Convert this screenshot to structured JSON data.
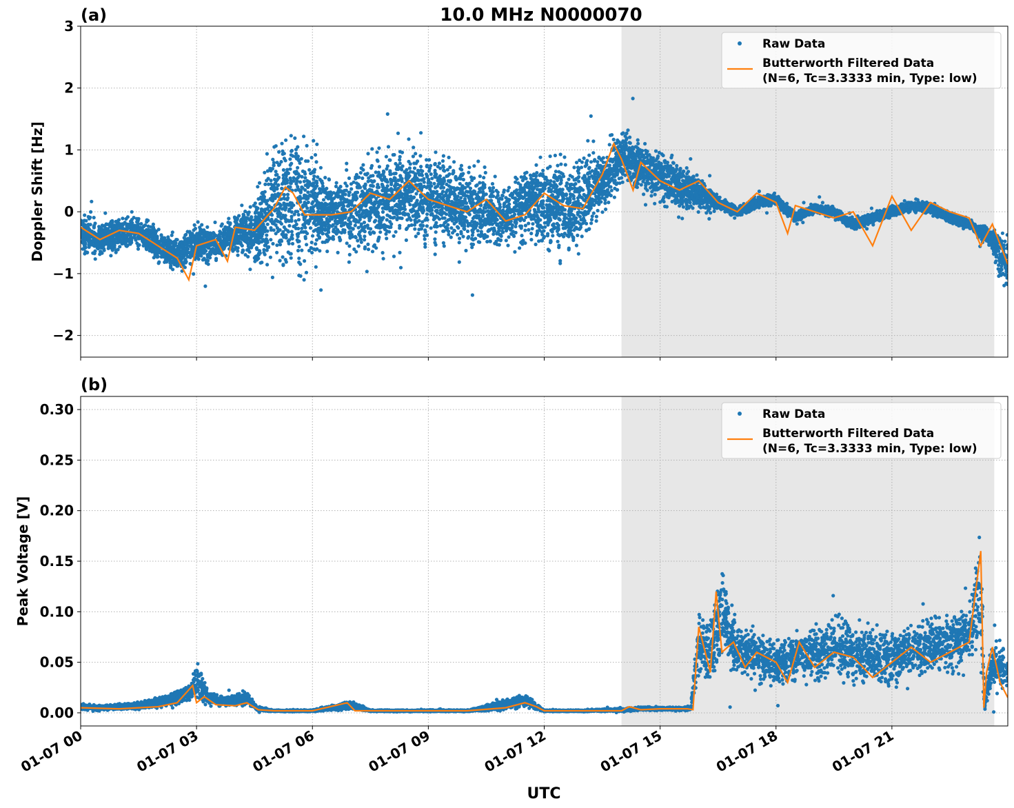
{
  "figure_title": "10.0 MHz N0000070",
  "x_axis": {
    "label": "UTC",
    "tick_labels": [
      "01-07 00",
      "01-07 03",
      "01-07 06",
      "01-07 09",
      "01-07 12",
      "01-07 15",
      "01-07 18",
      "01-07 21"
    ]
  },
  "legend": {
    "raw": "Raw Data",
    "filtered_line1": "Butterworth Filtered Data",
    "filtered_line2": "(N=6, Tc=3.3333 min, Type: low)"
  },
  "colors": {
    "raw": "#1f77b4",
    "filtered": "#ff7f0e",
    "shade": "#e7e7e7",
    "grid": "#b0b0b0"
  },
  "chart_data": [
    {
      "panel": "(a)",
      "type": "scatter",
      "xlabel": "",
      "ylabel": "Doppler Shift [Hz]",
      "x_unit": "hours UTC on 01-07",
      "xlim": [
        0,
        24
      ],
      "ylim": [
        -2.35,
        3.0
      ],
      "yticks": [
        -2,
        -1,
        0,
        1,
        2,
        3
      ],
      "ytick_labels": [
        "−2",
        "−1",
        "0",
        "1",
        "2",
        "3"
      ],
      "shaded_region": [
        14.0,
        23.65
      ],
      "grid": true,
      "legend_position": "upper right",
      "series": [
        {
          "name": "Raw Data",
          "kind": "scatter",
          "x": [
            0.0,
            0.5,
            1.0,
            1.5,
            2.0,
            2.5,
            3.0,
            3.5,
            4.0,
            4.5,
            5.0,
            5.5,
            6.0,
            6.5,
            7.0,
            7.5,
            8.0,
            8.5,
            9.0,
            9.5,
            10.0,
            10.5,
            11.0,
            11.5,
            12.0,
            12.5,
            13.0,
            13.5,
            14.0,
            14.5,
            15.0,
            15.5,
            16.0,
            16.5,
            17.0,
            17.5,
            18.0,
            18.5,
            19.0,
            19.5,
            20.0,
            20.5,
            21.0,
            21.5,
            22.0,
            22.5,
            23.0,
            23.5,
            24.0
          ],
          "center": [
            -0.35,
            -0.45,
            -0.35,
            -0.3,
            -0.55,
            -0.7,
            -0.5,
            -0.55,
            -0.35,
            -0.3,
            0.1,
            0.25,
            0.1,
            0.0,
            0.0,
            0.15,
            0.2,
            0.3,
            0.2,
            0.15,
            0.1,
            0.05,
            -0.1,
            0.15,
            0.15,
            0.05,
            0.2,
            0.5,
            0.9,
            0.75,
            0.6,
            0.4,
            0.3,
            0.15,
            0.0,
            0.15,
            0.2,
            -0.1,
            0.05,
            0.0,
            -0.2,
            -0.1,
            0.0,
            0.1,
            0.05,
            -0.1,
            -0.2,
            -0.4,
            -0.9
          ],
          "spread": [
            0.35,
            0.35,
            0.3,
            0.3,
            0.3,
            0.3,
            0.3,
            0.3,
            0.35,
            0.55,
            1.1,
            1.2,
            1.1,
            0.5,
            0.8,
            0.85,
            0.85,
            0.85,
            0.85,
            0.8,
            0.7,
            0.6,
            0.5,
            0.65,
            0.8,
            0.8,
            0.75,
            0.55,
            0.55,
            0.45,
            0.45,
            0.45,
            0.3,
            0.12,
            0.1,
            0.1,
            0.1,
            0.1,
            0.1,
            0.1,
            0.1,
            0.1,
            0.1,
            0.1,
            0.1,
            0.1,
            0.1,
            0.15,
            0.6
          ]
        },
        {
          "name": "Butterworth Filtered Data\n(N=6, Tc=3.3333 min, Type: low)",
          "kind": "line",
          "x": [
            0.0,
            0.5,
            1.0,
            1.5,
            2.0,
            2.5,
            2.8,
            3.0,
            3.5,
            3.8,
            4.0,
            4.5,
            5.0,
            5.3,
            5.5,
            5.8,
            6.0,
            6.5,
            7.0,
            7.5,
            8.0,
            8.5,
            9.0,
            9.5,
            10.0,
            10.5,
            11.0,
            11.5,
            12.0,
            12.5,
            13.0,
            13.5,
            13.8,
            14.0,
            14.3,
            14.5,
            15.0,
            15.5,
            16.0,
            16.5,
            17.0,
            17.5,
            18.0,
            18.3,
            18.5,
            19.0,
            19.5,
            20.0,
            20.5,
            21.0,
            21.5,
            22.0,
            22.5,
            23.0,
            23.3,
            23.6,
            24.0
          ],
          "y": [
            -0.25,
            -0.45,
            -0.3,
            -0.35,
            -0.55,
            -0.75,
            -1.1,
            -0.55,
            -0.45,
            -0.8,
            -0.25,
            -0.3,
            0.05,
            0.4,
            0.3,
            -0.05,
            -0.05,
            -0.05,
            0.0,
            0.3,
            0.2,
            0.5,
            0.2,
            0.1,
            0.0,
            0.2,
            -0.15,
            -0.05,
            0.3,
            0.1,
            0.05,
            0.6,
            1.1,
            0.85,
            0.35,
            0.8,
            0.5,
            0.35,
            0.5,
            0.15,
            0.0,
            0.3,
            0.15,
            -0.35,
            0.1,
            0.0,
            -0.1,
            0.0,
            -0.55,
            0.25,
            -0.3,
            0.15,
            0.0,
            -0.1,
            -0.55,
            -0.2,
            -0.85
          ]
        }
      ]
    },
    {
      "panel": "(b)",
      "type": "scatter",
      "xlabel": "UTC",
      "ylabel": "Peak Voltage [V]",
      "x_unit": "hours UTC on 01-07",
      "xlim": [
        0,
        24
      ],
      "ylim": [
        -0.013,
        0.313
      ],
      "yticks": [
        0.0,
        0.05,
        0.1,
        0.15,
        0.2,
        0.25,
        0.3
      ],
      "ytick_labels": [
        "0.00",
        "0.05",
        "0.10",
        "0.15",
        "0.20",
        "0.25",
        "0.30"
      ],
      "shaded_region": [
        14.0,
        23.65
      ],
      "grid": true,
      "legend_position": "upper right",
      "series": [
        {
          "name": "Raw Data",
          "kind": "scatter",
          "x": [
            0.0,
            0.5,
            1.0,
            1.5,
            2.0,
            2.5,
            2.8,
            3.0,
            3.3,
            3.6,
            4.0,
            4.3,
            4.6,
            5.0,
            6.0,
            7.0,
            7.5,
            8.0,
            9.0,
            10.0,
            11.0,
            11.5,
            12.0,
            13.0,
            14.0,
            14.5,
            15.0,
            15.5,
            15.8,
            16.0,
            16.3,
            16.6,
            17.0,
            17.5,
            18.0,
            18.5,
            19.0,
            19.5,
            20.0,
            20.5,
            21.0,
            21.5,
            22.0,
            22.5,
            23.0,
            23.3,
            23.4,
            23.6,
            24.0
          ],
          "center": [
            0.006,
            0.005,
            0.006,
            0.007,
            0.01,
            0.015,
            0.02,
            0.03,
            0.015,
            0.012,
            0.012,
            0.015,
            0.004,
            0.002,
            0.002,
            0.008,
            0.002,
            0.002,
            0.002,
            0.002,
            0.008,
            0.012,
            0.002,
            0.002,
            0.003,
            0.004,
            0.004,
            0.004,
            0.005,
            0.07,
            0.06,
            0.1,
            0.06,
            0.055,
            0.05,
            0.055,
            0.06,
            0.065,
            0.06,
            0.055,
            0.055,
            0.06,
            0.065,
            0.07,
            0.075,
            0.12,
            0.01,
            0.05,
            0.04
          ],
          "spread": [
            0.003,
            0.003,
            0.003,
            0.004,
            0.006,
            0.008,
            0.01,
            0.02,
            0.008,
            0.006,
            0.006,
            0.007,
            0.002,
            0.001,
            0.001,
            0.005,
            0.001,
            0.001,
            0.001,
            0.001,
            0.006,
            0.007,
            0.001,
            0.001,
            0.002,
            0.002,
            0.002,
            0.002,
            0.003,
            0.04,
            0.04,
            0.05,
            0.03,
            0.03,
            0.025,
            0.025,
            0.03,
            0.03,
            0.03,
            0.03,
            0.03,
            0.03,
            0.03,
            0.03,
            0.03,
            0.08,
            0.01,
            0.03,
            0.02
          ]
        },
        {
          "name": "Butterworth Filtered Data\n(N=6, Tc=3.3333 min, Type: low)",
          "kind": "line",
          "x": [
            0.0,
            1.0,
            2.0,
            2.5,
            2.9,
            3.0,
            3.2,
            3.5,
            4.0,
            4.3,
            4.6,
            5.0,
            6.0,
            6.9,
            7.1,
            7.5,
            9.0,
            10.0,
            11.0,
            11.5,
            11.8,
            12.0,
            13.0,
            14.0,
            14.2,
            14.5,
            15.0,
            15.7,
            15.85,
            16.0,
            16.3,
            16.45,
            16.6,
            16.9,
            17.2,
            17.5,
            18.0,
            18.3,
            18.6,
            19.0,
            19.5,
            20.0,
            20.5,
            21.0,
            21.5,
            22.0,
            22.5,
            23.0,
            23.3,
            23.38,
            23.45,
            23.6,
            23.8,
            24.0
          ],
          "y": [
            0.005,
            0.004,
            0.006,
            0.01,
            0.027,
            0.01,
            0.016,
            0.008,
            0.007,
            0.01,
            0.003,
            0.002,
            0.002,
            0.01,
            0.002,
            0.002,
            0.002,
            0.002,
            0.005,
            0.01,
            0.006,
            0.002,
            0.002,
            0.002,
            0.006,
            0.003,
            0.004,
            0.004,
            0.003,
            0.085,
            0.04,
            0.12,
            0.06,
            0.07,
            0.045,
            0.06,
            0.05,
            0.03,
            0.07,
            0.045,
            0.06,
            0.055,
            0.035,
            0.05,
            0.065,
            0.05,
            0.06,
            0.07,
            0.16,
            0.005,
            0.04,
            0.065,
            0.03,
            0.015
          ]
        }
      ]
    }
  ]
}
